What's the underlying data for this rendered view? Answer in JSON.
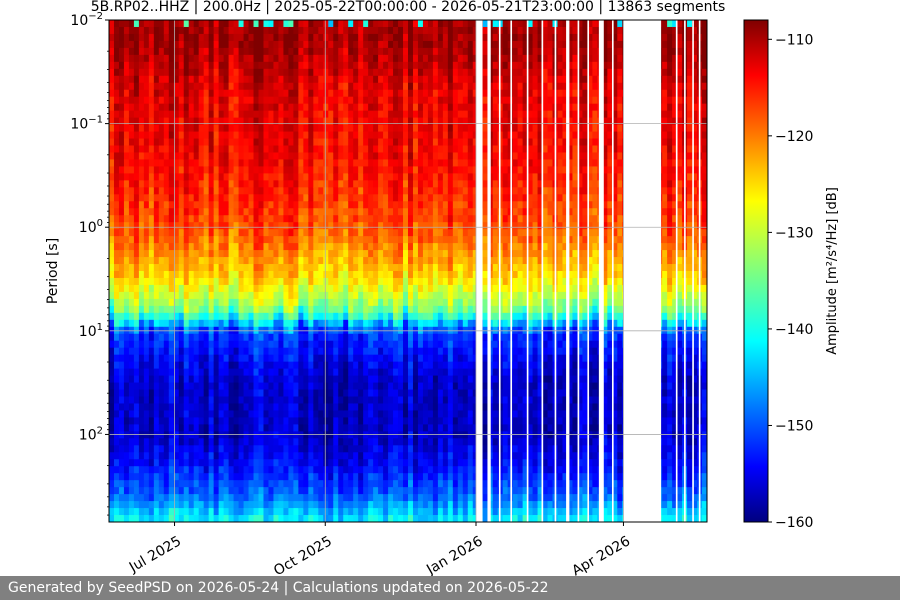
{
  "footer": {
    "text": "Generated by SeedPSD on 2026-05-24 | Calculations updated on 2026-05-22"
  },
  "chart_data": {
    "type": "heatmap",
    "title": "5B.RP02..HHZ | 200.0Hz | 2025-05-22T00:00:00 - 2026-05-21T23:00:00 | 13863 segments",
    "ylabel": "Period [s]",
    "xlabel": "",
    "x_range": [
      "2025-05-22",
      "2026-05-21"
    ],
    "y_scale": "log",
    "y_range_s": [
      0.01,
      700
    ],
    "y_ticks": [
      {
        "value": 0.01,
        "base": "10",
        "exp": "−2"
      },
      {
        "value": 0.1,
        "base": "10",
        "exp": "−1"
      },
      {
        "value": 1,
        "base": "10",
        "exp": "0"
      },
      {
        "value": 10,
        "base": "10",
        "exp": "1"
      },
      {
        "value": 100,
        "base": "10",
        "exp": "2"
      }
    ],
    "x_ticks": [
      {
        "date": "2025-07-01",
        "label": "Jul 2025"
      },
      {
        "date": "2025-10-01",
        "label": "Oct 2025"
      },
      {
        "date": "2026-01-01",
        "label": "Jan 2026"
      },
      {
        "date": "2026-04-01",
        "label": "Apr 2026"
      }
    ],
    "grid": true,
    "colormap": "jet",
    "colorbar": {
      "label": "Amplitude [m²/s⁴/Hz] [dB]",
      "range": [
        -160,
        -108
      ],
      "ticks": [
        {
          "value": -110,
          "label": "−110"
        },
        {
          "value": -120,
          "label": "−120"
        },
        {
          "value": -130,
          "label": "−130"
        },
        {
          "value": -140,
          "label": "−140"
        },
        {
          "value": -150,
          "label": "−150"
        },
        {
          "value": -160,
          "label": "−160"
        }
      ]
    },
    "data_gaps": [
      [
        "2026-01-01",
        "2026-01-05"
      ],
      [
        "2026-01-08",
        "2026-01-10"
      ],
      [
        "2026-01-15",
        "2026-01-16"
      ],
      [
        "2026-01-22",
        "2026-01-23"
      ],
      [
        "2026-02-01",
        "2026-02-02"
      ],
      [
        "2026-02-10",
        "2026-02-11"
      ],
      [
        "2026-02-18",
        "2026-02-19"
      ],
      [
        "2026-02-25",
        "2026-02-27"
      ],
      [
        "2026-03-04",
        "2026-03-05"
      ],
      [
        "2026-03-10",
        "2026-03-11"
      ],
      [
        "2026-03-17",
        "2026-03-20"
      ],
      [
        "2026-03-25",
        "2026-03-26"
      ],
      [
        "2026-04-01",
        "2026-04-24"
      ],
      [
        "2026-05-03",
        "2026-05-04"
      ],
      [
        "2026-05-08",
        "2026-05-09"
      ],
      [
        "2026-05-13",
        "2026-05-14"
      ],
      [
        "2026-05-17",
        "2026-05-18"
      ]
    ],
    "spectrum_profile": [
      {
        "period": 0.01,
        "db": -110
      },
      {
        "period": 0.015,
        "db": -109
      },
      {
        "period": 0.05,
        "db": -113
      },
      {
        "period": 0.2,
        "db": -114
      },
      {
        "period": 1,
        "db": -118
      },
      {
        "period": 3,
        "db": -125
      },
      {
        "period": 6,
        "db": -133
      },
      {
        "period": 8,
        "db": -141
      },
      {
        "period": 10,
        "db": -150
      },
      {
        "period": 30,
        "db": -156
      },
      {
        "period": 100,
        "db": -156
      },
      {
        "period": 200,
        "db": -153
      },
      {
        "period": 400,
        "db": -148
      },
      {
        "period": 700,
        "db": -140
      }
    ]
  }
}
